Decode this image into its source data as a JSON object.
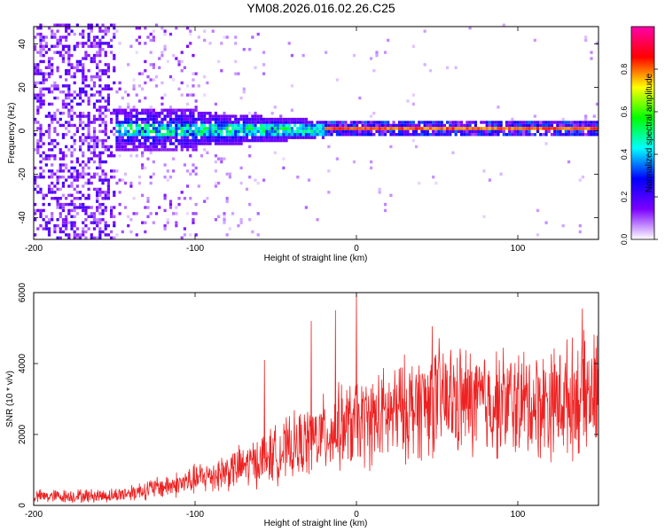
{
  "figure": {
    "title": "YM08.2026.016.02.26.C25"
  },
  "chart_data": [
    {
      "type": "heatmap",
      "title": "YM08.2026.016.02.26.C25",
      "xlabel": "Height of straight line (km)",
      "ylabel": "Frequency (Hz)",
      "xlim": [
        -200,
        150
      ],
      "ylim": [
        -50,
        48
      ],
      "xticks": [
        -200,
        -100,
        0,
        100
      ],
      "yticks": [
        -40,
        -20,
        0,
        20,
        40
      ],
      "colorbar": {
        "label": "Normalized spectral amplitude",
        "range": [
          0,
          1
        ],
        "ticks": [
          0.0,
          0.2,
          0.4,
          0.6,
          0.8
        ],
        "tick_labels": [
          "0.0",
          "0.2",
          "0.4",
          "0.6",
          "0.8"
        ],
        "colormap": [
          "#ffffff",
          "#7a00ff",
          "#0000ff",
          "#00ffff",
          "#00ff00",
          "#ffff00",
          "#ff0000",
          "#ff00aa"
        ]
      },
      "features": {
        "central_line_frequency_hz": 0,
        "central_line_start_km": -20,
        "central_line_amplitude": 0.85,
        "noise_region_end_km": -150
      }
    },
    {
      "type": "line",
      "xlabel": "Height of straight line (km)",
      "ylabel": "SNR (10 * v/v)",
      "xlim": [
        -200,
        150
      ],
      "ylim": [
        0,
        6000
      ],
      "xticks": [
        -200,
        -100,
        0,
        100
      ],
      "yticks": [
        0,
        2000,
        4000,
        6000
      ],
      "color": "#ee2222",
      "trend": {
        "x": [
          -200,
          -150,
          -130,
          -110,
          -90,
          -70,
          -50,
          -30,
          -10,
          10,
          30,
          50,
          70,
          90,
          110,
          130,
          150
        ],
        "y": [
          250,
          280,
          450,
          600,
          850,
          1100,
          1450,
          1800,
          2200,
          2400,
          2700,
          3000,
          2900,
          2900,
          2850,
          3000,
          3150
        ]
      },
      "peaks": [
        {
          "x": 0,
          "y": 6000
        },
        {
          "x": -13,
          "y": 5500
        },
        {
          "x": -28,
          "y": 5200
        },
        {
          "x": 140,
          "y": 5550
        },
        {
          "x": -57,
          "y": 4100
        },
        {
          "x": 47,
          "y": 5050
        }
      ]
    }
  ]
}
